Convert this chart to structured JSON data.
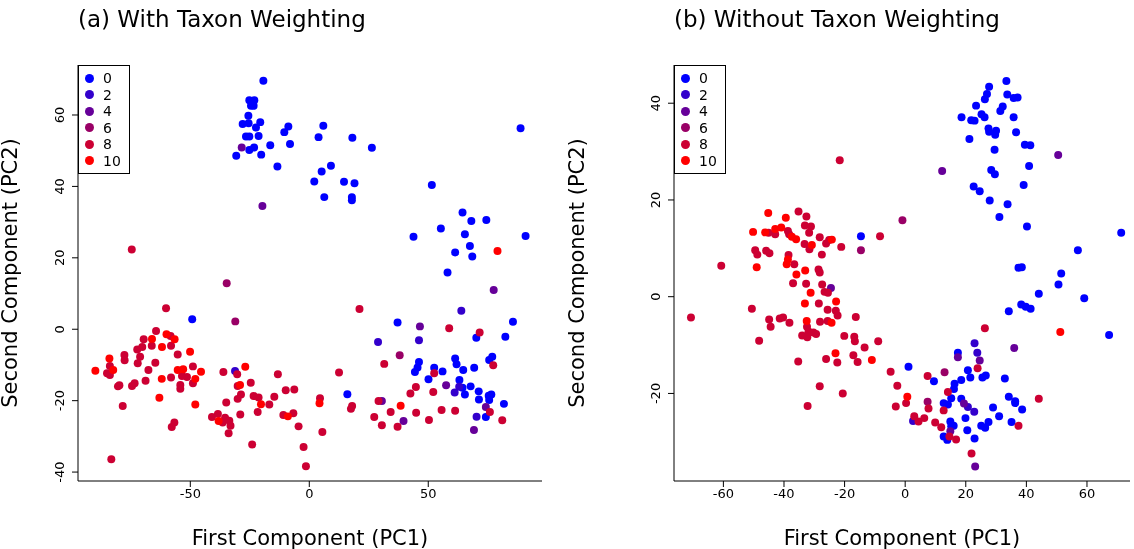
{
  "chart_data": [
    {
      "type": "scatter",
      "title": "(a) With Taxon Weighting",
      "xlabel": "First Component  (PC1)",
      "ylabel": "Second Component  (PC2)",
      "xlim": [
        -97.2,
        97.8
      ],
      "ylim": [
        -42.5,
        74
      ],
      "xticks": [
        -50,
        0,
        50
      ],
      "yticks": [
        -40,
        -20,
        0,
        20,
        40,
        60
      ],
      "grid": false,
      "legend": "top left",
      "marker": "circle",
      "series": [
        {
          "name": "0",
          "color": "#0000ff",
          "x": [
            -19.3,
            -25.2,
            -23.1,
            -24.5,
            -23.4,
            -25.6,
            -28.0,
            -25.5,
            -20.6,
            -22.4,
            -26.6,
            -25.2,
            -21.3,
            -23.2,
            -25.2,
            -20.2,
            -30.7,
            -16.4,
            -13.4,
            -8.8,
            -10.5,
            -8.1,
            5.9,
            3.9,
            18.1,
            26.3,
            9.1,
            5.2,
            2.1,
            14.6,
            19.0,
            6.3,
            17.9,
            17.9,
            51.5,
            88.8,
            64.4,
            68.1,
            74.4,
            55.3,
            43.8,
            90.9,
            65.4,
            67.5,
            61.3,
            68.5,
            58.1,
            -49.2,
            85.6,
            37.1,
            70.2,
            82.4,
            46.1,
            45.5,
            44.4,
            52.5,
            56.0,
            61.3,
            61.9,
            64.7,
            69.3,
            75.6,
            76.9,
            50.1,
            63.1,
            64.4,
            65.4,
            67.8,
            71.2,
            71.3,
            75.4,
            76.5,
            75.6,
            81.8,
            74.2,
            16.0
          ],
          "values": [
            69.6,
            64.1,
            64.1,
            62.6,
            62.6,
            59.8,
            57.5,
            57.7,
            58.0,
            56.5,
            54.0,
            54.0,
            54.1,
            50.9,
            50.2,
            48.9,
            48.6,
            51.5,
            45.6,
            56.8,
            55.2,
            51.9,
            57.0,
            53.8,
            53.6,
            50.8,
            45.8,
            44.2,
            41.4,
            41.3,
            40.9,
            37.0,
            37.0,
            36.1,
            40.4,
            56.3,
            32.7,
            30.3,
            30.6,
            28.2,
            25.9,
            26.1,
            26.6,
            23.3,
            21.5,
            20.4,
            15.9,
            2.8,
            2.1,
            1.9,
            -2.4,
            -2.1,
            -9.2,
            -10.7,
            -12.0,
            -10.8,
            -11.8,
            -8.2,
            -9.8,
            -11.4,
            -10.8,
            -8.6,
            -7.7,
            -14.0,
            -14.2,
            -16.4,
            -18.3,
            -16.0,
            -17.4,
            -19.7,
            -18.6,
            -18.3,
            -19.8,
            -20.9,
            -24.6,
            -18.2
          ]
        },
        {
          "name": "2",
          "color": "#3300cc",
          "x": [
            63.9,
            28.9,
            46.1,
            61.1,
            63.0,
            70.3,
            -31.2
          ],
          "values": [
            5.2,
            -3.6,
            -3.1,
            -17.7,
            -16.1,
            -24.5,
            -11.7
          ]
        },
        {
          "name": "4",
          "color": "#660099",
          "x": [
            -28.4,
            -19.7,
            77.5,
            46.5,
            57.5,
            74.2,
            39.6,
            30.5,
            69.2
          ],
          "values": [
            50.9,
            34.5,
            11.0,
            0.8,
            -15.7,
            -21.8,
            -25.7,
            -20.1,
            -28.2
          ]
        },
        {
          "name": "6",
          "color": "#990066",
          "x": [
            -34.7,
            -31.1,
            38.0
          ],
          "values": [
            12.9,
            2.2,
            -7.3
          ]
        },
        {
          "name": "8",
          "color": "#cc0033",
          "x": [
            -74.6,
            -60.2,
            21.1,
            58.8,
            71.6,
            31.5,
            77.3,
            52.5,
            44.8,
            42.5,
            52.1,
            75.9,
            81.1,
            61.3,
            55.6,
            50.3,
            44.9,
            37.1,
            34.2,
            30.5,
            27.3,
            29.1,
            18.0,
            17.5,
            12.5,
            4.5,
            5.5,
            -1.4,
            -2.4,
            -4.5,
            -6.7,
            -10.9,
            -6.3,
            -9.9,
            -13.2,
            -14.7,
            -16.8,
            -21.3,
            -23.4,
            -21.7,
            -24.0,
            -24.6,
            -30.1,
            -28.7,
            -30.1,
            -29.0,
            -30.3,
            -36.1,
            -34.9,
            -40.9,
            -38.4,
            -35.4,
            -36.4,
            -33.6,
            -33.1,
            -33.9,
            -48.9,
            -48.9,
            -51.4,
            -53.5,
            -54.2,
            -54.2,
            -55.3,
            -58.1,
            -58.1,
            -58.3,
            -64.4,
            -66.2,
            -69.6,
            -70.2,
            -72.3,
            -71.1,
            -72.1,
            -64.7,
            -67.6,
            -68.8,
            -73.4,
            -74.5,
            -79.8,
            -80.4,
            -77.7,
            -77.6,
            -83.8,
            -85.0,
            -83.8,
            -78.4,
            -56.7,
            -57.8,
            -83.2
          ],
          "values": [
            22.3,
            5.9,
            5.7,
            0.3,
            -0.9,
            -9.7,
            -10.1,
            -12.3,
            -16.2,
            -18.0,
            -17.6,
            -23.2,
            -25.5,
            -22.8,
            -22.6,
            -25.4,
            -23.4,
            -27.3,
            -23.2,
            -26.9,
            -24.6,
            -20.1,
            -21.5,
            -22.3,
            -12.1,
            -19.3,
            -28.8,
            -38.4,
            -33.0,
            -27.2,
            -23.5,
            -24.0,
            -16.9,
            -17.1,
            -12.6,
            -18.9,
            -21.1,
            -19.1,
            -18.7,
            -23.2,
            -32.3,
            -15.0,
            -15.9,
            -18.3,
            -19.5,
            -23.9,
            -12.6,
            -12.0,
            -20.5,
            -24.6,
            -23.7,
            -24.8,
            -26.1,
            -25.6,
            -27.0,
            -29.1,
            -15.1,
            -10.4,
            -13.4,
            -13.1,
            -15.6,
            -16.7,
            -7.1,
            -4.6,
            -13.5,
            -1.9,
            -0.5,
            -4.6,
            -2.8,
            -5.0,
            -5.7,
            -7.7,
            -9.5,
            -9.4,
            -11.4,
            -14.4,
            -15.1,
            -15.9,
            -15.7,
            -16.0,
            -7.2,
            -8.7,
            -10.3,
            -12.3,
            -12.8,
            -21.5,
            -26.1,
            -27.4,
            -36.4
          ]
        },
        {
          "name": "10",
          "color": "#ff0000",
          "x": [
            79.1,
            38.4,
            4.3,
            -9.0,
            -20.3,
            -26.9,
            -29.1,
            -38.1,
            -45.5,
            -47.9,
            -50.1,
            -47.9,
            -53.0,
            -55.3,
            -56.6,
            -60.0,
            -61.9,
            -66.1,
            -62.0,
            -63.0,
            -84.0,
            -82.4,
            -89.9
          ],
          "values": [
            21.9,
            -21.4,
            -20.7,
            -24.4,
            -21.0,
            -10.5,
            -15.6,
            -25.7,
            -11.9,
            -13.9,
            -6.3,
            -21.1,
            -11.2,
            -11.4,
            -2.8,
            -1.4,
            -5.0,
            -2.7,
            -13.9,
            -19.2,
            -8.2,
            -11.4,
            -11.6
          ]
        }
      ]
    },
    {
      "type": "scatter",
      "title": "(b) Without Taxon Weighting",
      "xlabel": "First Component  (PC1)",
      "ylabel": "Second Component  (PC2)",
      "xlim": [
        -76.3,
        74.2
      ],
      "ylim": [
        -38.1,
        47.9
      ],
      "xticks": [
        -60,
        -40,
        -20,
        0,
        20,
        40,
        60
      ],
      "yticks": [
        -20,
        0,
        20,
        40
      ],
      "grid": false,
      "legend": "top left",
      "marker": "circle",
      "series": [
        {
          "name": "0",
          "color": "#0000ff",
          "x": [
            33.4,
            27.7,
            27.0,
            33.7,
            35.8,
            37.1,
            26.3,
            23.4,
            32.2,
            31.4,
            18.6,
            21.8,
            22.9,
            25.2,
            26.2,
            35.8,
            27.5,
            27.7,
            30.0,
            29.7,
            36.6,
            21.2,
            39.5,
            41.3,
            29.5,
            40.9,
            28.4,
            29.6,
            22.6,
            24.6,
            39.1,
            27.9,
            33.8,
            31.1,
            40.2,
            71.3,
            57.0,
            -14.6,
            37.4,
            38.5,
            1.1,
            9.5,
            17.4,
            20.7,
            21.5,
            18.5,
            16.3,
            16.1,
            15.2,
            18.5,
            12.7,
            14.1,
            14.9,
            16.0,
            15.2,
            12.7,
            13.9,
            19.9,
            20.5,
            22.9,
            25.5,
            26.6,
            29.0,
            31.0,
            27.5,
            25.1,
            26.4,
            32.9,
            34.2,
            36.3,
            36.3,
            38.6,
            35.1,
            34.2,
            38.3,
            39.8,
            41.4,
            44.1,
            50.6,
            51.5,
            59.1,
            67.3
          ],
          "values": [
            44.6,
            43.4,
            41.9,
            41.8,
            41.1,
            41.2,
            40.8,
            39.5,
            39.3,
            38.4,
            37.1,
            36.5,
            36.4,
            37.7,
            37.1,
            37.1,
            34.8,
            34.1,
            34.3,
            33.5,
            34.0,
            32.6,
            31.4,
            31.3,
            30.4,
            27.0,
            26.2,
            25.3,
            22.8,
            21.8,
            23.1,
            19.9,
            19.1,
            16.5,
            14.5,
            13.2,
            9.6,
            12.5,
            6.0,
            6.1,
            -14.5,
            -17.5,
            -11.6,
            -15.2,
            -16.7,
            -17.2,
            -18.0,
            -19.1,
            -21.0,
            -21.1,
            -22.0,
            -22.3,
            -25.8,
            -26.7,
            -26.8,
            -28.9,
            -29.6,
            -25.1,
            -27.6,
            -29.3,
            -16.7,
            -16.3,
            -22.9,
            -24.7,
            -25.9,
            -26.7,
            -27.1,
            -16.9,
            -20.7,
            -21.6,
            -22.0,
            -23.3,
            -25.9,
            -3.0,
            -1.6,
            -2.1,
            -2.5,
            0.6,
            2.5,
            4.8,
            -0.3,
            -7.9
          ]
        },
        {
          "name": "2",
          "color": "#3300cc",
          "x": [
            22.9,
            23.8,
            20.7,
            2.6,
            22.8
          ],
          "values": [
            -9.6,
            -11.6,
            -22.8,
            -25.7,
            -23.8
          ]
        },
        {
          "name": "4",
          "color": "#660099",
          "x": [
            12.2,
            50.5,
            -24.5,
            17.4,
            24.6,
            19.4,
            14.9,
            23.1,
            36.0
          ],
          "values": [
            26.0,
            29.3,
            1.8,
            -12.5,
            -13.2,
            -22.1,
            -27.8,
            -35.1,
            -10.6
          ]
        },
        {
          "name": "6",
          "color": "#990066",
          "x": [
            -0.9,
            -14.6,
            13.0,
            7.4
          ],
          "values": [
            15.8,
            9.6,
            -15.6,
            -21.7
          ]
        },
        {
          "name": "8",
          "color": "#cc0033",
          "x": [
            -21.6,
            -8.3,
            -21.1,
            -35.2,
            -32.6,
            -45.1,
            -42.9,
            -38.7,
            -38.3,
            -33.1,
            -31.1,
            -31.7,
            -28.2,
            -25.1,
            -26.1,
            -33.2,
            -31.6,
            -27.5,
            -49.5,
            -48.8,
            -45.9,
            -44.8,
            -38.5,
            -36.6,
            -60.7,
            -28.6,
            -28.2,
            -37.0,
            -32.7,
            -27.4,
            -26.6,
            -25.5,
            -28.5,
            -25.6,
            -22.9,
            -22.3,
            -50.6,
            -70.7,
            -44.9,
            -41.4,
            -40.3,
            -38.2,
            -44.4,
            -28.1,
            -25.6,
            -32.4,
            -31.9,
            -34.0,
            -32.3,
            -30.3,
            -29.4,
            -16.3,
            -20.1,
            -16.8,
            -16.6,
            -8.9,
            -13.4,
            -48.2,
            -35.3,
            -26.1,
            -22.4,
            -17.1,
            -15.7,
            -28.2,
            -20.6,
            -32.2,
            -4.8,
            -2.6,
            0.3,
            -3.1,
            7.4,
            23.9,
            14.1,
            12.7,
            7.7,
            3.0,
            4.4,
            6.3,
            9.9,
            11.9,
            14.6,
            16.8,
            21.9,
            37.4,
            44.1,
            26.3
          ],
          "values": [
            28.2,
            12.5,
            10.3,
            17.6,
            16.6,
            13.2,
            12.9,
            13.6,
            12.9,
            14.7,
            14.5,
            13.2,
            12.3,
            11.7,
            11.0,
            10.9,
            9.8,
            8.7,
            9.6,
            8.7,
            9.5,
            9.0,
            8.6,
            6.7,
            6.4,
            5.6,
            5.0,
            2.8,
            2.7,
            2.5,
            1.0,
            0.8,
            -1.4,
            -2.7,
            -2.9,
            -3.9,
            -2.5,
            -4.3,
            -4.7,
            -4.5,
            -4.3,
            -5.4,
            -6.2,
            -5.2,
            -5.0,
            -6.2,
            -7.2,
            -8.0,
            -8.4,
            -7.4,
            -7.7,
            -4.2,
            -8.1,
            -8.3,
            -9.2,
            -9.2,
            -10.5,
            -9.1,
            -13.4,
            -12.9,
            -13.6,
            -12.1,
            -13.5,
            -18.5,
            -20.0,
            -22.6,
            -15.5,
            -18.4,
            -22.0,
            -22.7,
            -16.4,
            -14.8,
            -19.7,
            -23.5,
            -23.1,
            -24.7,
            -25.8,
            -25.1,
            -26.0,
            -27.0,
            -28.9,
            -29.5,
            -32.4,
            -26.7,
            -21.1,
            -6.5
          ]
        },
        {
          "name": "10",
          "color": "#ff0000",
          "x": [
            -45.2,
            -39.4,
            -50.2,
            -46.2,
            -42.9,
            -40.9,
            -37.4,
            -36.0,
            -24.2,
            -30.8,
            -38.7,
            -39.1,
            -49.0,
            -33.0,
            -35.9,
            -31.2,
            -33.1,
            -22.8,
            -32.5,
            -24.3,
            -23.0,
            -11.0,
            0.7,
            51.2
          ],
          "values": [
            17.3,
            16.3,
            13.4,
            13.3,
            14.0,
            14.3,
            12.4,
            11.9,
            11.8,
            10.7,
            7.7,
            6.7,
            6.1,
            5.4,
            4.6,
            0.8,
            -1.4,
            -1.0,
            -5.0,
            -5.4,
            -11.7,
            -13.1,
            -20.7,
            -7.3
          ]
        }
      ]
    }
  ]
}
